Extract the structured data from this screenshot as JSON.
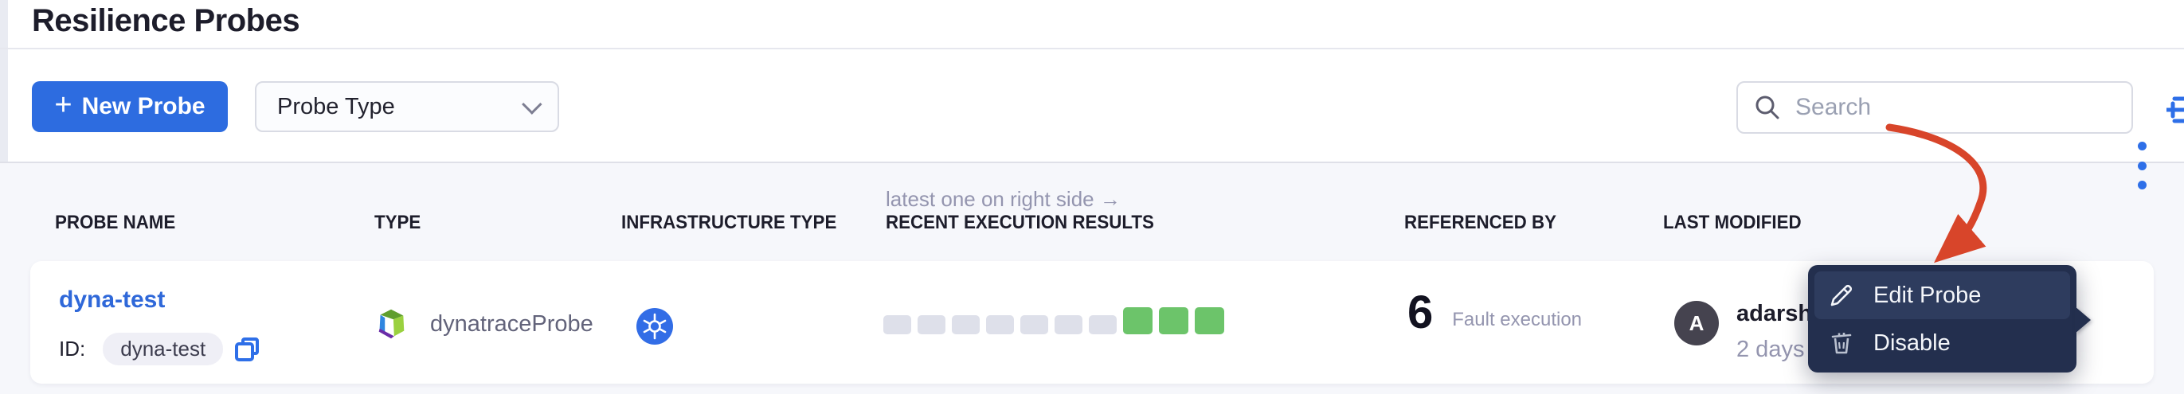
{
  "page": {
    "title": "Resilience Probes"
  },
  "toolbar": {
    "new_probe": {
      "plus": "+",
      "label": "New Probe"
    },
    "probe_type_filter": {
      "label": "Probe Type"
    },
    "search": {
      "placeholder": "Search",
      "value": ""
    }
  },
  "table": {
    "note": "latest one on right side →",
    "headers": [
      "PROBE NAME",
      "TYPE",
      "INFRASTRUCTURE TYPE",
      "RECENT EXECUTION RESULTS",
      "REFERENCED BY",
      "LAST MODIFIED"
    ],
    "row": {
      "name": "dyna-test",
      "id_label": "ID:",
      "id_value": "dyna-test",
      "type_label": "dynatraceProbe",
      "type_icon": "dynatrace-probe-icon",
      "infrastructure_icon": "kubernetes-icon",
      "executions": {
        "statuses": [
          "none",
          "none",
          "none",
          "none",
          "none",
          "none",
          "none",
          "passed",
          "passed",
          "passed"
        ]
      },
      "referenced_by": {
        "count": "6",
        "label": "Fault execution"
      },
      "last_modified": {
        "avatar_initial": "A",
        "user": "adarsh",
        "time": "2 days a"
      }
    }
  },
  "context_menu": {
    "items": [
      {
        "label": "Edit Probe",
        "icon": "pencil-icon"
      },
      {
        "label": "Disable",
        "icon": "trash-icon"
      }
    ]
  },
  "colors": {
    "primary_blue": "#2d6ce0",
    "link_blue": "#2f68d9",
    "success_green": "#6cc46a",
    "neutral_square": "#dee0ea",
    "menu_navy": "#232f4e",
    "menu_highlight": "#2e3c5e",
    "annotation_red": "#d8452a",
    "table_bg": "#f6f7fb"
  }
}
